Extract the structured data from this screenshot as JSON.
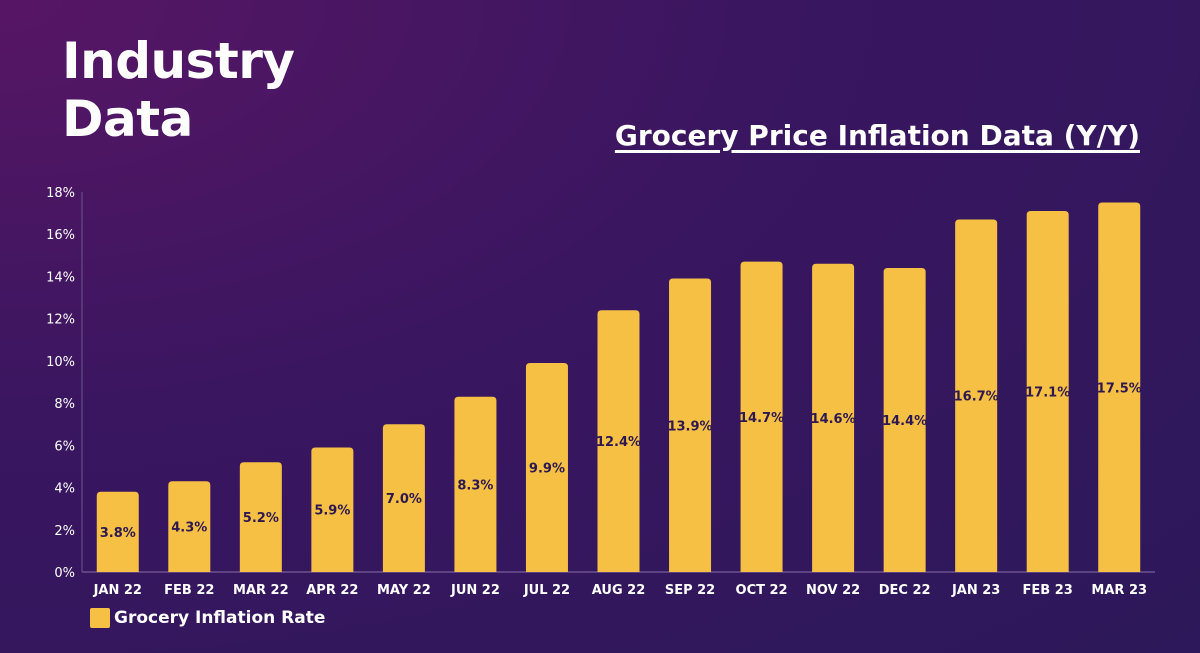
{
  "heading": {
    "line1": "Industry",
    "line2": "Data"
  },
  "chart_data": {
    "type": "bar",
    "title": "Grocery Price Inflation Data (Y/Y)",
    "xlabel": "",
    "ylabel": "",
    "categories": [
      "JAN 22",
      "FEB 22",
      "MAR 22",
      "APR 22",
      "MAY 22",
      "JUN 22",
      "JUL 22",
      "AUG 22",
      "SEP 22",
      "OCT 22",
      "NOV 22",
      "DEC 22",
      "JAN 23",
      "FEB 23",
      "MAR 23"
    ],
    "series": [
      {
        "name": "Grocery Inflation Rate",
        "values": [
          3.8,
          4.3,
          5.2,
          5.9,
          7.0,
          8.3,
          9.9,
          12.4,
          13.9,
          14.7,
          14.6,
          14.4,
          16.7,
          17.1,
          17.5
        ],
        "data_labels": [
          "3.8%",
          "4.3%",
          "5.2%",
          "5.9%",
          "7.0%",
          "8.3%",
          "9.9%",
          "12.4%",
          "13.9%",
          "14.7%",
          "14.6%",
          "14.4%",
          "16.7%",
          "17.1%",
          "17.5%"
        ],
        "color": "#f5c043"
      }
    ],
    "ylim": [
      0,
      18
    ],
    "yticks": [
      "0%",
      "2%",
      "4%",
      "6%",
      "8%",
      "10%",
      "12%",
      "14%",
      "16%",
      "18%"
    ],
    "grid": false,
    "legend_position": "bottom-left"
  },
  "colors": {
    "bar": "#f5c043",
    "background": "#3a1660",
    "data_label": "#2e1852",
    "text": "#ffffff"
  }
}
